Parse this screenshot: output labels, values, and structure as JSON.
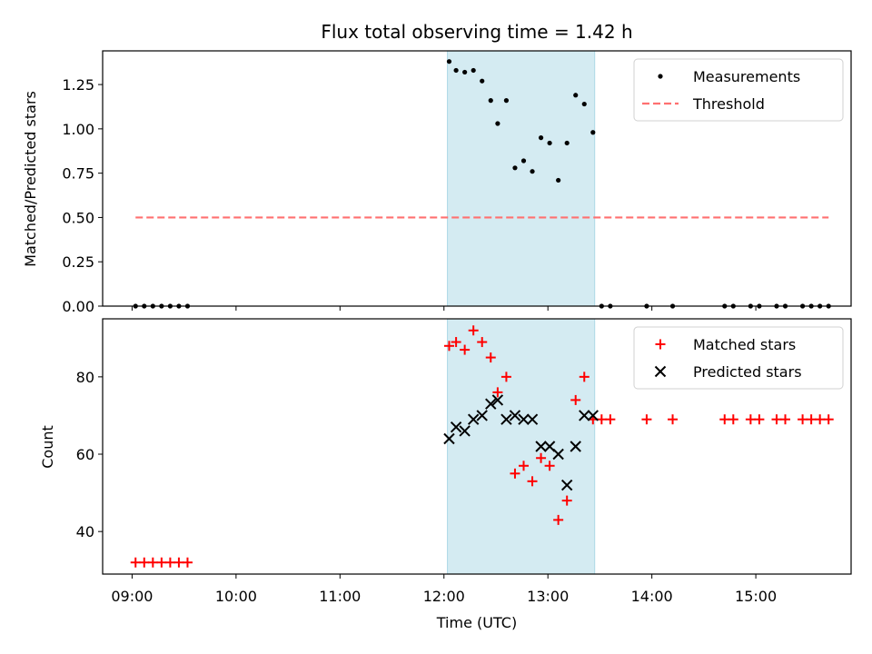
{
  "chart_data": {
    "type": "scatter",
    "title": "Flux total observing time = 1.42 h",
    "xlabel": "Time (UTC)",
    "x_ticks": [
      "09:00",
      "10:00",
      "11:00",
      "12:00",
      "13:00",
      "14:00",
      "15:00"
    ],
    "x_range": [
      "08:43",
      "15:55"
    ],
    "shaded_interval": {
      "start": "12:02",
      "end": "13:27",
      "color": "#add8e6"
    },
    "panels": [
      {
        "ylabel": "Matched/Predicted stars",
        "ylim": [
          0,
          1.44
        ],
        "y_ticks": [
          0.0,
          0.25,
          0.5,
          0.75,
          1.0,
          1.25
        ],
        "legend_position": "top-right",
        "series": [
          {
            "name": "Measurements",
            "kind": "dot",
            "color": "#000000",
            "points": [
              [
                "09:02",
                0.0
              ],
              [
                "09:07",
                0.0
              ],
              [
                "09:12",
                0.0
              ],
              [
                "09:17",
                0.0
              ],
              [
                "09:22",
                0.0
              ],
              [
                "09:27",
                0.0
              ],
              [
                "09:32",
                0.0
              ],
              [
                "12:03",
                1.38
              ],
              [
                "12:07",
                1.33
              ],
              [
                "12:12",
                1.32
              ],
              [
                "12:17",
                1.33
              ],
              [
                "12:22",
                1.27
              ],
              [
                "12:27",
                1.16
              ],
              [
                "12:31",
                1.03
              ],
              [
                "12:36",
                1.16
              ],
              [
                "12:41",
                0.78
              ],
              [
                "12:46",
                0.82
              ],
              [
                "12:51",
                0.76
              ],
              [
                "12:56",
                0.95
              ],
              [
                "13:01",
                0.92
              ],
              [
                "13:06",
                0.71
              ],
              [
                "13:11",
                0.92
              ],
              [
                "13:16",
                1.19
              ],
              [
                "13:21",
                1.14
              ],
              [
                "13:26",
                0.98
              ],
              [
                "13:31",
                0.0
              ],
              [
                "13:36",
                0.0
              ],
              [
                "13:57",
                0.0
              ],
              [
                "14:12",
                0.0
              ],
              [
                "14:42",
                0.0
              ],
              [
                "14:47",
                0.0
              ],
              [
                "14:57",
                0.0
              ],
              [
                "15:02",
                0.0
              ],
              [
                "15:12",
                0.0
              ],
              [
                "15:17",
                0.0
              ],
              [
                "15:27",
                0.0
              ],
              [
                "15:32",
                0.0
              ],
              [
                "15:37",
                0.0
              ],
              [
                "15:42",
                0.0
              ]
            ]
          },
          {
            "name": "Threshold",
            "kind": "dashed-line",
            "color": "#ff7070",
            "points": [
              [
                "09:02",
                0.5
              ],
              [
                "15:42",
                0.5
              ]
            ]
          }
        ]
      },
      {
        "ylabel": "Count",
        "ylim": [
          29,
          95
        ],
        "y_ticks": [
          40,
          60,
          80
        ],
        "legend_position": "top-right",
        "series": [
          {
            "name": "Matched stars",
            "kind": "plus",
            "color": "#ff0000",
            "points": [
              [
                "09:02",
                32
              ],
              [
                "09:07",
                32
              ],
              [
                "09:12",
                32
              ],
              [
                "09:17",
                32
              ],
              [
                "09:22",
                32
              ],
              [
                "09:27",
                32
              ],
              [
                "09:32",
                32
              ],
              [
                "12:03",
                88
              ],
              [
                "12:07",
                89
              ],
              [
                "12:12",
                87
              ],
              [
                "12:17",
                92
              ],
              [
                "12:22",
                89
              ],
              [
                "12:27",
                85
              ],
              [
                "12:31",
                76
              ],
              [
                "12:36",
                80
              ],
              [
                "12:41",
                55
              ],
              [
                "12:46",
                57
              ],
              [
                "12:51",
                53
              ],
              [
                "12:56",
                59
              ],
              [
                "13:01",
                57
              ],
              [
                "13:06",
                43
              ],
              [
                "13:11",
                48
              ],
              [
                "13:16",
                74
              ],
              [
                "13:21",
                80
              ],
              [
                "13:26",
                69
              ],
              [
                "13:31",
                69
              ],
              [
                "13:36",
                69
              ],
              [
                "13:57",
                69
              ],
              [
                "14:12",
                69
              ],
              [
                "14:42",
                69
              ],
              [
                "14:47",
                69
              ],
              [
                "14:57",
                69
              ],
              [
                "15:02",
                69
              ],
              [
                "15:12",
                69
              ],
              [
                "15:17",
                69
              ],
              [
                "15:27",
                69
              ],
              [
                "15:32",
                69
              ],
              [
                "15:37",
                69
              ],
              [
                "15:42",
                69
              ]
            ]
          },
          {
            "name": "Predicted stars",
            "kind": "x",
            "color": "#000000",
            "points": [
              [
                "12:03",
                64
              ],
              [
                "12:07",
                67
              ],
              [
                "12:12",
                66
              ],
              [
                "12:17",
                69
              ],
              [
                "12:22",
                70
              ],
              [
                "12:27",
                73
              ],
              [
                "12:31",
                74
              ],
              [
                "12:36",
                69
              ],
              [
                "12:41",
                70
              ],
              [
                "12:46",
                69
              ],
              [
                "12:51",
                69
              ],
              [
                "12:56",
                62
              ],
              [
                "13:01",
                62
              ],
              [
                "13:06",
                60
              ],
              [
                "13:11",
                52
              ],
              [
                "13:16",
                62
              ],
              [
                "13:21",
                70
              ],
              [
                "13:26",
                70
              ]
            ]
          }
        ]
      }
    ]
  }
}
